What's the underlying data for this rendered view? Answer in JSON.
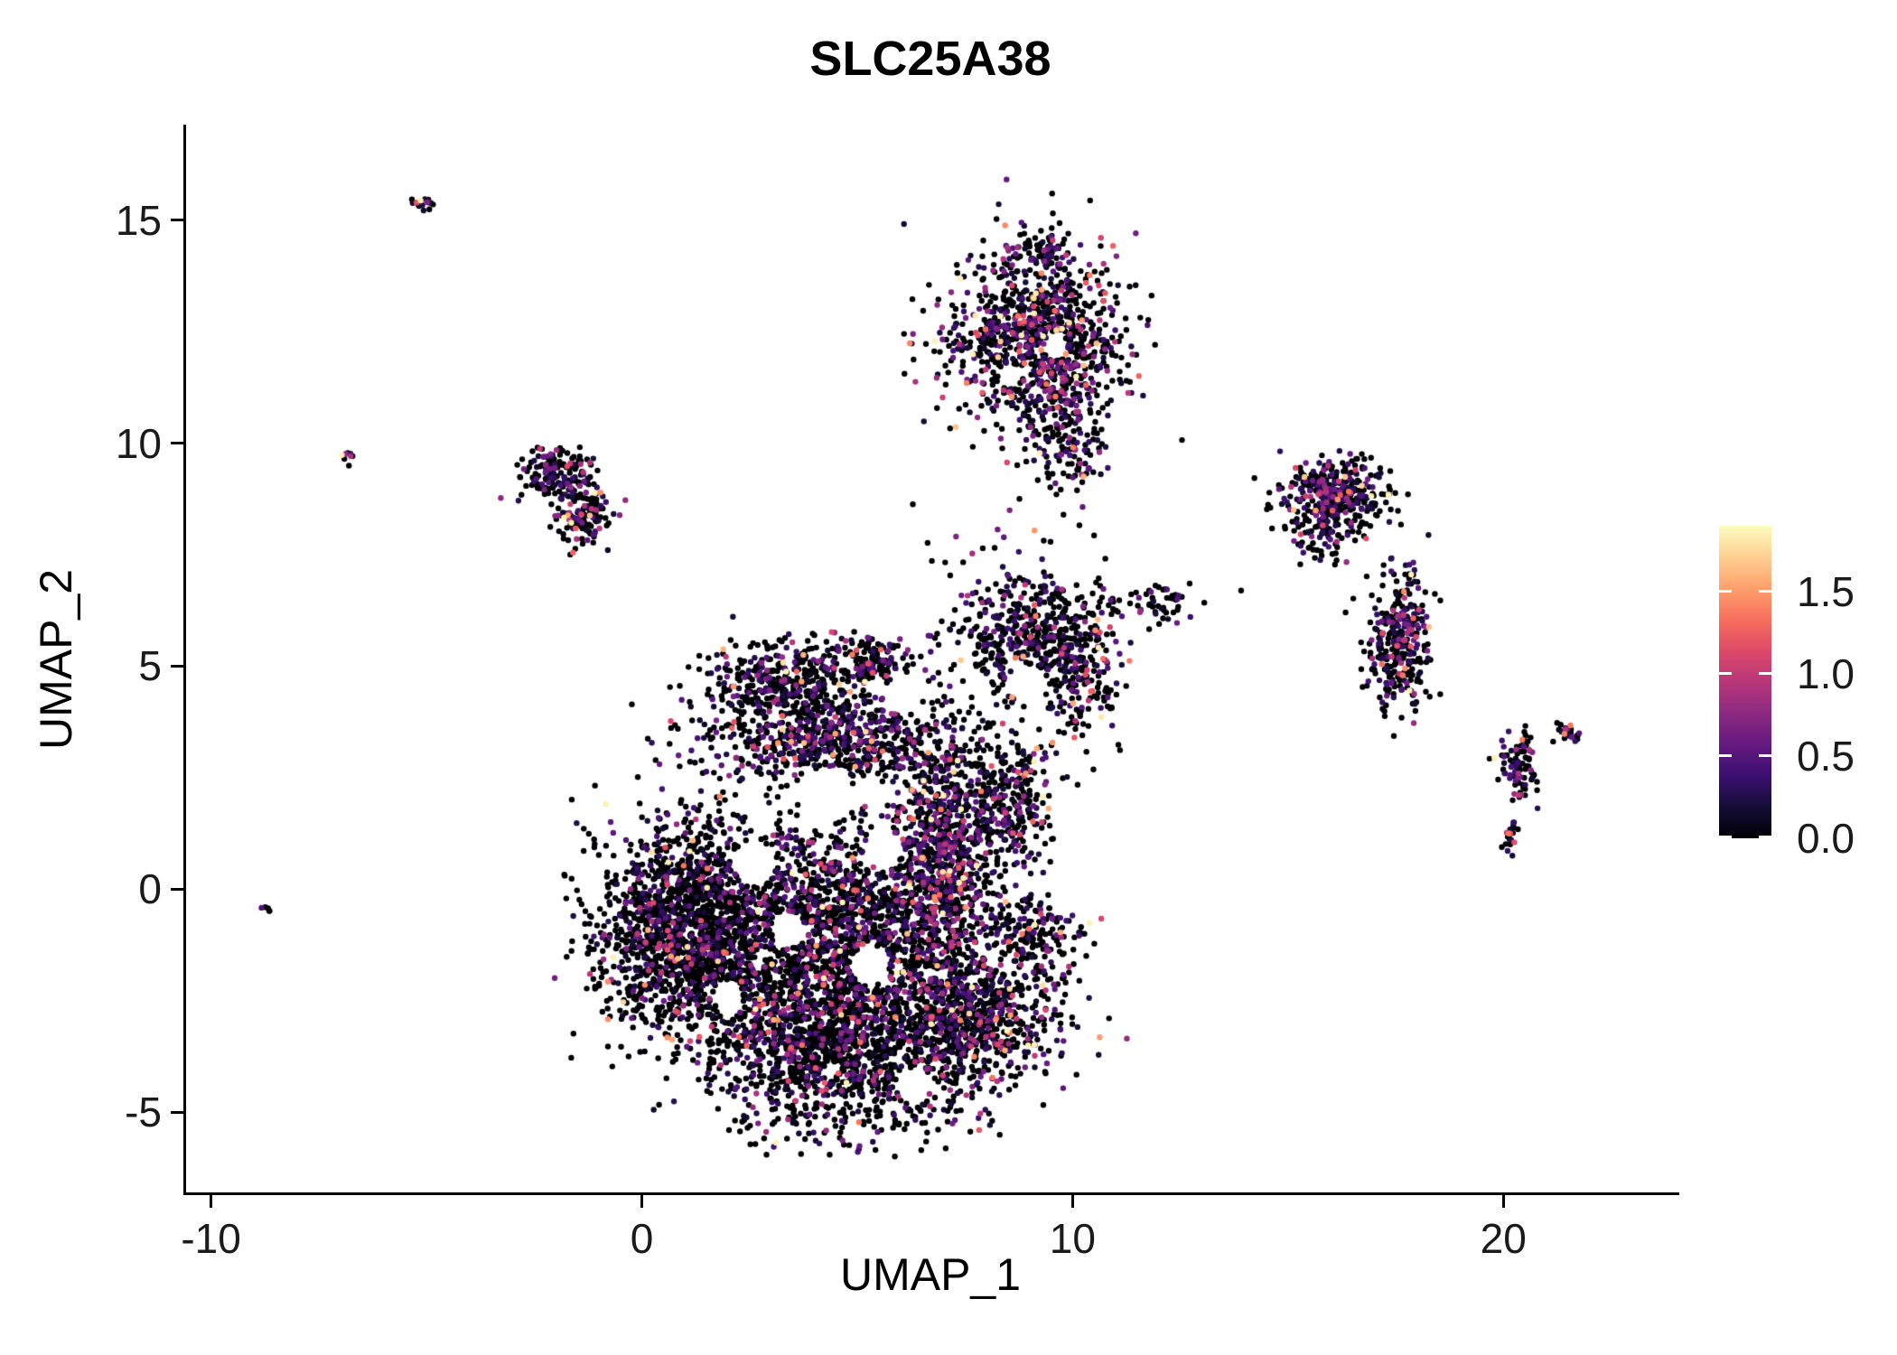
{
  "chart_data": {
    "type": "scatter",
    "title": "SLC25A38",
    "xlabel": "UMAP_1",
    "ylabel": "UMAP_2",
    "xlim": [
      -10.6,
      24.0
    ],
    "ylim": [
      -6.8,
      17.1
    ],
    "x_ticks": [
      -10,
      0,
      10,
      20
    ],
    "x_tick_labels": [
      "-10",
      "0",
      "10",
      "20"
    ],
    "y_ticks": [
      -5,
      0,
      5,
      10,
      15
    ],
    "y_tick_labels": [
      "-5",
      "0",
      "5",
      "10",
      "15"
    ],
    "grid": false,
    "legend_position": "right",
    "point_radius": 3.2,
    "seed": 42,
    "colorbar": {
      "vmin": 0,
      "vmax": 1.9,
      "tick_values": [
        0,
        0.5,
        1.0,
        1.5
      ],
      "tick_labels": [
        "0.0",
        "0.5",
        "1.0",
        "1.5"
      ],
      "stops": [
        {
          "t": 0.0,
          "c": "#000004"
        },
        {
          "t": 0.1,
          "c": "#140e36"
        },
        {
          "t": 0.2,
          "c": "#3b0f70"
        },
        {
          "t": 0.3,
          "c": "#641a80"
        },
        {
          "t": 0.4,
          "c": "#8c2981"
        },
        {
          "t": 0.5,
          "c": "#b73779"
        },
        {
          "t": 0.6,
          "c": "#de4968"
        },
        {
          "t": 0.7,
          "c": "#f7705c"
        },
        {
          "t": 0.8,
          "c": "#fe9f6d"
        },
        {
          "t": 0.9,
          "c": "#fecf92"
        },
        {
          "t": 1.0,
          "c": "#fcfdbf"
        }
      ]
    },
    "clusters": [
      {
        "name": "main-left-lobe",
        "cx": 1.1,
        "cy": -0.9,
        "sx": 1.05,
        "sy": 1.2,
        "n": 1700,
        "expr_frac": 0.22,
        "expr_scale": 0.4
      },
      {
        "name": "main-bottom",
        "cx": 4.4,
        "cy": -3.4,
        "sx": 1.5,
        "sy": 1.05,
        "n": 1600,
        "expr_frac": 0.28,
        "expr_scale": 0.4
      },
      {
        "name": "main-center",
        "cx": 4.6,
        "cy": -0.7,
        "sx": 1.35,
        "sy": 1.15,
        "n": 1400,
        "expr_frac": 0.3,
        "expr_scale": 0.4
      },
      {
        "name": "upper-band",
        "cx": 4.4,
        "cy": 3.3,
        "sx": 1.6,
        "sy": 0.5,
        "n": 650,
        "expr_frac": 0.38,
        "expr_scale": 0.4
      },
      {
        "name": "upper-lobe",
        "cx": 3.4,
        "cy": 4.6,
        "sx": 0.95,
        "sy": 0.5,
        "n": 420,
        "expr_frac": 0.3,
        "expr_scale": 0.4
      },
      {
        "name": "upper-lobe-small",
        "cx": 5.4,
        "cy": 5.1,
        "sx": 0.45,
        "sy": 0.3,
        "n": 130,
        "expr_frac": 0.3,
        "expr_scale": 0.4
      },
      {
        "name": "right-band",
        "cx": 7.0,
        "cy": 0.8,
        "sx": 0.55,
        "sy": 1.5,
        "n": 900,
        "expr_frac": 0.45,
        "expr_scale": 0.45
      },
      {
        "name": "right-lower",
        "cx": 7.7,
        "cy": -2.9,
        "sx": 1.05,
        "sy": 0.95,
        "n": 800,
        "expr_frac": 0.3,
        "expr_scale": 0.4
      },
      {
        "name": "right-lower-arm",
        "cx": 9.2,
        "cy": -0.9,
        "sx": 0.5,
        "sy": 0.5,
        "n": 150,
        "expr_frac": 0.3,
        "expr_scale": 0.4
      },
      {
        "name": "mid-right-arm",
        "cx": 8.5,
        "cy": 1.9,
        "sx": 0.55,
        "sy": 0.8,
        "n": 300,
        "expr_frac": 0.35,
        "expr_scale": 0.4
      },
      {
        "name": "upper-right-knob",
        "cx": 8.8,
        "cy": 5.7,
        "sx": 0.75,
        "sy": 0.65,
        "n": 380,
        "expr_frac": 0.32,
        "expr_scale": 0.4
      },
      {
        "name": "upper-right-knob2",
        "cx": 10.1,
        "cy": 5.0,
        "sx": 0.5,
        "sy": 0.85,
        "n": 240,
        "expr_frac": 0.3,
        "expr_scale": 0.4
      },
      {
        "name": "bridge-dots",
        "cx": 11.9,
        "cy": 6.4,
        "sx": 0.6,
        "sy": 0.22,
        "n": 60,
        "expr_frac": 0.3,
        "expr_scale": 0.4
      },
      {
        "name": "scatter-mid",
        "cx": 8.1,
        "cy": 7.5,
        "sx": 1.1,
        "sy": 0.6,
        "n": 22,
        "expr_frac": 0.3,
        "expr_scale": 0.4
      },
      {
        "name": "top-cluster",
        "cx": 9.2,
        "cy": 12.4,
        "sx": 1.05,
        "sy": 1.0,
        "n": 1000,
        "expr_frac": 0.45,
        "expr_scale": 0.45
      },
      {
        "name": "top-cluster-tail",
        "cx": 9.9,
        "cy": 10.3,
        "sx": 0.45,
        "sy": 0.85,
        "n": 190,
        "expr_frac": 0.4,
        "expr_scale": 0.4
      },
      {
        "name": "top-cluster-tip",
        "cx": 9.35,
        "cy": 14.3,
        "sx": 0.25,
        "sy": 0.22,
        "n": 60,
        "expr_frac": 0.35,
        "expr_scale": 0.4
      },
      {
        "name": "northwest-cluster",
        "cx": -1.95,
        "cy": 9.3,
        "sx": 0.45,
        "sy": 0.32,
        "n": 180,
        "expr_frac": 0.3,
        "expr_scale": 0.4
      },
      {
        "name": "northwest-cluster-lower",
        "cx": -1.35,
        "cy": 8.35,
        "sx": 0.33,
        "sy": 0.26,
        "n": 120,
        "expr_frac": 0.4,
        "expr_scale": 0.5
      },
      {
        "name": "tiny-far-northwest",
        "cx": -5.05,
        "cy": 15.4,
        "sx": 0.16,
        "sy": 0.1,
        "n": 16,
        "expr_frac": 0.5,
        "expr_scale": 0.5
      },
      {
        "name": "tiny-west-dot",
        "cx": -6.85,
        "cy": 9.7,
        "sx": 0.09,
        "sy": 0.06,
        "n": 8,
        "expr_frac": 0.5,
        "expr_scale": 0.5
      },
      {
        "name": "tiny-southwest-dot",
        "cx": -8.75,
        "cy": -0.45,
        "sx": 0.06,
        "sy": 0.05,
        "n": 5,
        "expr_frac": 0.1,
        "expr_scale": 0.3
      },
      {
        "name": "northeast-cluster",
        "cx": 16.1,
        "cy": 8.85,
        "sx": 0.6,
        "sy": 0.42,
        "n": 380,
        "expr_frac": 0.42,
        "expr_scale": 0.45
      },
      {
        "name": "northeast-cluster-below",
        "cx": 15.8,
        "cy": 7.9,
        "sx": 0.4,
        "sy": 0.35,
        "n": 60,
        "expr_frac": 0.35,
        "expr_scale": 0.4
      },
      {
        "name": "east-cluster",
        "cx": 17.65,
        "cy": 5.6,
        "sx": 0.38,
        "sy": 0.72,
        "n": 320,
        "expr_frac": 0.4,
        "expr_scale": 0.45
      },
      {
        "name": "far-east-cluster",
        "cx": 20.35,
        "cy": 2.75,
        "sx": 0.2,
        "sy": 0.45,
        "n": 90,
        "expr_frac": 0.45,
        "expr_scale": 0.5
      },
      {
        "name": "far-east-branch",
        "cx": 21.45,
        "cy": 3.5,
        "sx": 0.2,
        "sy": 0.1,
        "n": 28,
        "expr_frac": 0.45,
        "expr_scale": 0.5
      },
      {
        "name": "far-east-lower-dot",
        "cx": 20.15,
        "cy": 1.2,
        "sx": 0.1,
        "sy": 0.15,
        "n": 22,
        "expr_frac": 0.45,
        "expr_scale": 0.5
      }
    ],
    "voids": [
      {
        "x": 2.6,
        "y": 0.6,
        "r": 0.5
      },
      {
        "x": 4.3,
        "y": 2.1,
        "r": 0.65
      },
      {
        "x": 5.6,
        "y": 0.9,
        "r": 0.45
      },
      {
        "x": 3.4,
        "y": -0.9,
        "r": 0.4
      },
      {
        "x": 5.3,
        "y": -1.7,
        "r": 0.45
      },
      {
        "x": 2.0,
        "y": -2.4,
        "r": 0.35
      },
      {
        "x": 6.3,
        "y": -4.4,
        "r": 0.4
      },
      {
        "x": 6.1,
        "y": 4.4,
        "r": 0.45
      },
      {
        "x": 8.9,
        "y": 4.6,
        "r": 0.4
      },
      {
        "x": 9.6,
        "y": 12.15,
        "r": 0.28
      },
      {
        "x": 8.55,
        "y": 11.5,
        "r": 0.28
      }
    ]
  }
}
